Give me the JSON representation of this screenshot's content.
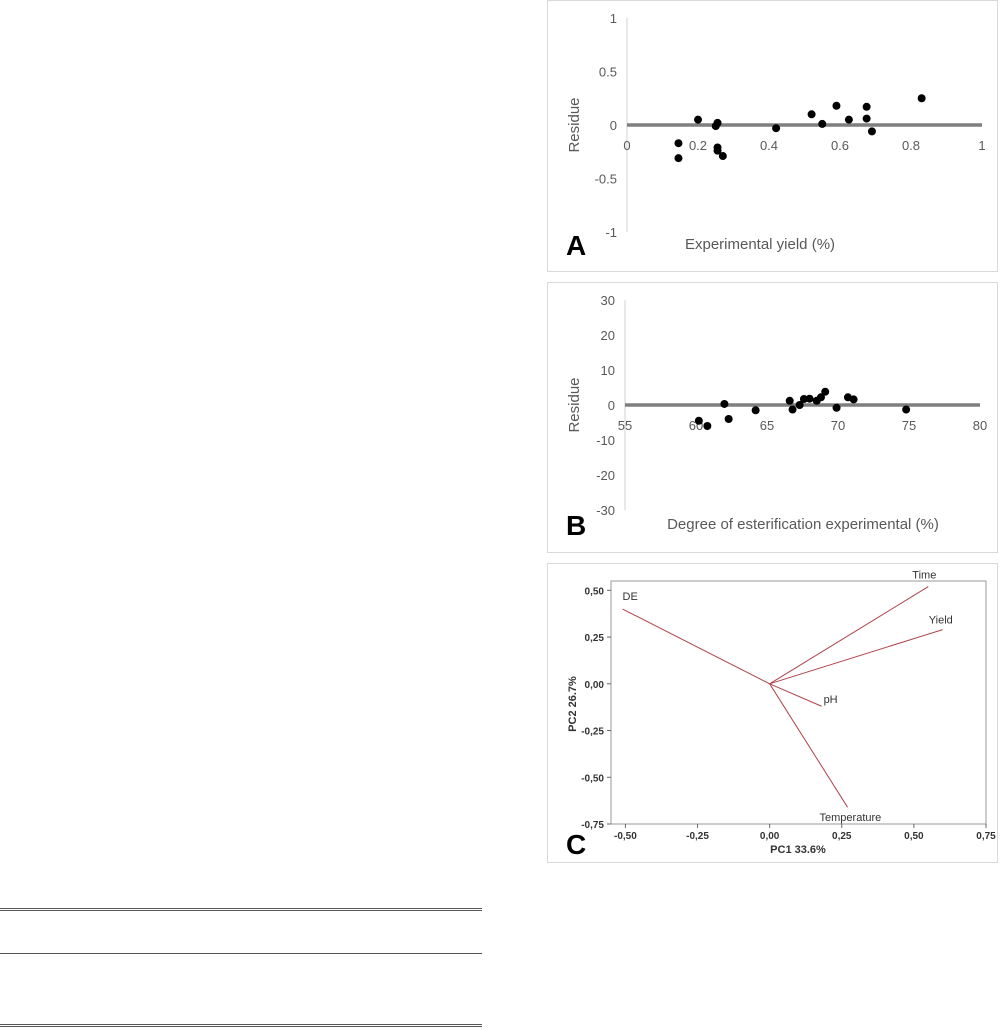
{
  "chart_data": [
    {
      "type": "scatter",
      "panel_label": "A",
      "xlabel": "Experimental yield (%)",
      "ylabel": "Residue",
      "xlim": [
        0,
        1
      ],
      "ylim": [
        -1,
        1
      ],
      "xticks": [
        0,
        0.2,
        0.4,
        0.6,
        0.8,
        1
      ],
      "xtick_labels": [
        "0",
        "0.2",
        "0.4",
        "0.6",
        "0.8",
        "1"
      ],
      "yticks": [
        1,
        0.5,
        0,
        -0.5,
        -1
      ],
      "ytick_labels": [
        "1",
        "0.5",
        "0",
        "-0.5",
        "-1"
      ],
      "points": [
        {
          "x": 0.145,
          "y": -0.17
        },
        {
          "x": 0.145,
          "y": -0.31
        },
        {
          "x": 0.2,
          "y": 0.05
        },
        {
          "x": 0.25,
          "y": -0.01
        },
        {
          "x": 0.255,
          "y": 0.02
        },
        {
          "x": 0.255,
          "y": -0.21
        },
        {
          "x": 0.255,
          "y": -0.24
        },
        {
          "x": 0.27,
          "y": -0.29
        },
        {
          "x": 0.42,
          "y": -0.03
        },
        {
          "x": 0.52,
          "y": 0.1
        },
        {
          "x": 0.55,
          "y": 0.01
        },
        {
          "x": 0.59,
          "y": 0.18
        },
        {
          "x": 0.625,
          "y": 0.05
        },
        {
          "x": 0.675,
          "y": 0.17
        },
        {
          "x": 0.675,
          "y": 0.06
        },
        {
          "x": 0.69,
          "y": -0.06
        },
        {
          "x": 0.83,
          "y": 0.25
        }
      ]
    },
    {
      "type": "scatter",
      "panel_label": "B",
      "xlabel": "Degree of esterification experimental (%)",
      "ylabel": "Residue",
      "xlim": [
        55,
        80
      ],
      "ylim": [
        -30,
        30
      ],
      "xticks": [
        55,
        60,
        65,
        70,
        75,
        80
      ],
      "xtick_labels": [
        "55",
        "60",
        "65",
        "70",
        "75",
        "80"
      ],
      "yticks": [
        30,
        20,
        10,
        0,
        -10,
        -20,
        -30
      ],
      "ytick_labels": [
        "30",
        "20",
        "10",
        "0",
        "-10",
        "-20",
        "-30"
      ],
      "points": [
        {
          "x": 60.2,
          "y": -4.5
        },
        {
          "x": 60.8,
          "y": -6
        },
        {
          "x": 62.0,
          "y": 0.3
        },
        {
          "x": 62.3,
          "y": -4
        },
        {
          "x": 64.2,
          "y": -1.5
        },
        {
          "x": 66.6,
          "y": 1.2
        },
        {
          "x": 66.8,
          "y": -1.3
        },
        {
          "x": 67.3,
          "y": 0
        },
        {
          "x": 67.6,
          "y": 1.7
        },
        {
          "x": 68.0,
          "y": 1.8
        },
        {
          "x": 68.5,
          "y": 1.2
        },
        {
          "x": 68.8,
          "y": 2.2
        },
        {
          "x": 69.1,
          "y": 3.8
        },
        {
          "x": 69.9,
          "y": -0.8
        },
        {
          "x": 70.7,
          "y": 2.2
        },
        {
          "x": 71.1,
          "y": 1.6
        },
        {
          "x": 74.8,
          "y": -1.3
        }
      ]
    },
    {
      "type": "loading-plot",
      "panel_label": "C",
      "xlabel": "PC1 33.6%",
      "ylabel": "PC2 26.7%",
      "xlim": [
        -0.55,
        0.75
      ],
      "ylim": [
        -0.75,
        0.55
      ],
      "xticks": [
        -0.5,
        -0.25,
        0,
        0.25,
        0.5,
        0.75
      ],
      "xtick_labels": [
        "-0,50",
        "-0,25",
        "0,00",
        "0,25",
        "0,50",
        "0,75"
      ],
      "yticks": [
        0.5,
        0.25,
        0,
        -0.25,
        -0.5,
        -0.75
      ],
      "ytick_labels": [
        "0,50",
        "0,25",
        "0,00",
        "-0,25",
        "-0,50",
        "-0,75"
      ],
      "line_color": "#b0434a",
      "vectors": [
        {
          "name": "DE",
          "x": -0.51,
          "y": 0.4
        },
        {
          "name": "Time",
          "x": 0.55,
          "y": 0.52
        },
        {
          "name": "Yield",
          "x": 0.6,
          "y": 0.29
        },
        {
          "name": "pH",
          "x": 0.18,
          "y": -0.12
        },
        {
          "name": "Temperature",
          "x": 0.27,
          "y": -0.66
        }
      ]
    }
  ]
}
